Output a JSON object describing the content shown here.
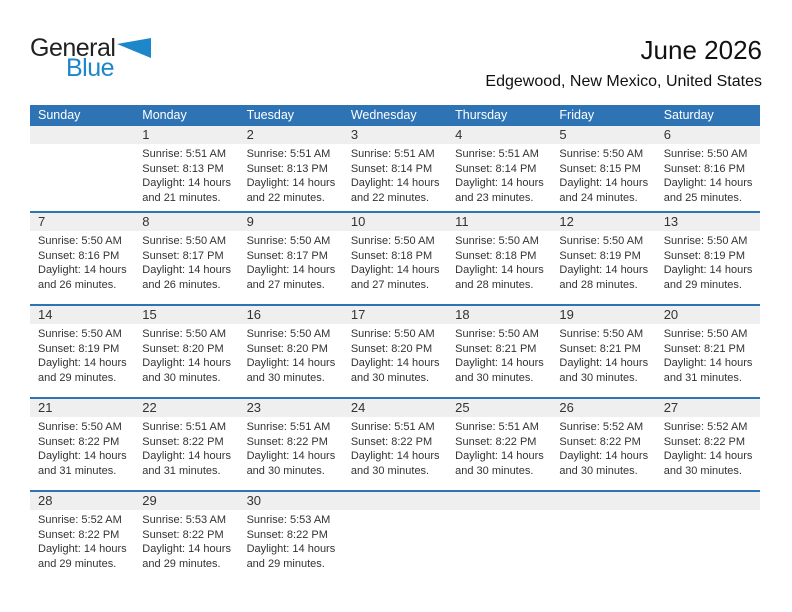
{
  "logo": {
    "part1": "General",
    "part2": "Blue"
  },
  "title": {
    "month_year": "June 2026",
    "location": "Edgewood, New Mexico, United States"
  },
  "colors": {
    "header_blue": "#2E74B5",
    "logo_blue": "#1E87C9",
    "band_gray": "#EFEFEF"
  },
  "calendar": {
    "weekday_headers": [
      "Sunday",
      "Monday",
      "Tuesday",
      "Wednesday",
      "Thursday",
      "Friday",
      "Saturday"
    ],
    "weeks": [
      [
        null,
        {
          "day": "1",
          "sunrise": "Sunrise: 5:51 AM",
          "sunset": "Sunset: 8:13 PM",
          "daylight_line1": "Daylight: 14 hours",
          "daylight_line2": "and 21 minutes."
        },
        {
          "day": "2",
          "sunrise": "Sunrise: 5:51 AM",
          "sunset": "Sunset: 8:13 PM",
          "daylight_line1": "Daylight: 14 hours",
          "daylight_line2": "and 22 minutes."
        },
        {
          "day": "3",
          "sunrise": "Sunrise: 5:51 AM",
          "sunset": "Sunset: 8:14 PM",
          "daylight_line1": "Daylight: 14 hours",
          "daylight_line2": "and 22 minutes."
        },
        {
          "day": "4",
          "sunrise": "Sunrise: 5:51 AM",
          "sunset": "Sunset: 8:14 PM",
          "daylight_line1": "Daylight: 14 hours",
          "daylight_line2": "and 23 minutes."
        },
        {
          "day": "5",
          "sunrise": "Sunrise: 5:50 AM",
          "sunset": "Sunset: 8:15 PM",
          "daylight_line1": "Daylight: 14 hours",
          "daylight_line2": "and 24 minutes."
        },
        {
          "day": "6",
          "sunrise": "Sunrise: 5:50 AM",
          "sunset": "Sunset: 8:16 PM",
          "daylight_line1": "Daylight: 14 hours",
          "daylight_line2": "and 25 minutes."
        }
      ],
      [
        {
          "day": "7",
          "sunrise": "Sunrise: 5:50 AM",
          "sunset": "Sunset: 8:16 PM",
          "daylight_line1": "Daylight: 14 hours",
          "daylight_line2": "and 26 minutes."
        },
        {
          "day": "8",
          "sunrise": "Sunrise: 5:50 AM",
          "sunset": "Sunset: 8:17 PM",
          "daylight_line1": "Daylight: 14 hours",
          "daylight_line2": "and 26 minutes."
        },
        {
          "day": "9",
          "sunrise": "Sunrise: 5:50 AM",
          "sunset": "Sunset: 8:17 PM",
          "daylight_line1": "Daylight: 14 hours",
          "daylight_line2": "and 27 minutes."
        },
        {
          "day": "10",
          "sunrise": "Sunrise: 5:50 AM",
          "sunset": "Sunset: 8:18 PM",
          "daylight_line1": "Daylight: 14 hours",
          "daylight_line2": "and 27 minutes."
        },
        {
          "day": "11",
          "sunrise": "Sunrise: 5:50 AM",
          "sunset": "Sunset: 8:18 PM",
          "daylight_line1": "Daylight: 14 hours",
          "daylight_line2": "and 28 minutes."
        },
        {
          "day": "12",
          "sunrise": "Sunrise: 5:50 AM",
          "sunset": "Sunset: 8:19 PM",
          "daylight_line1": "Daylight: 14 hours",
          "daylight_line2": "and 28 minutes."
        },
        {
          "day": "13",
          "sunrise": "Sunrise: 5:50 AM",
          "sunset": "Sunset: 8:19 PM",
          "daylight_line1": "Daylight: 14 hours",
          "daylight_line2": "and 29 minutes."
        }
      ],
      [
        {
          "day": "14",
          "sunrise": "Sunrise: 5:50 AM",
          "sunset": "Sunset: 8:19 PM",
          "daylight_line1": "Daylight: 14 hours",
          "daylight_line2": "and 29 minutes."
        },
        {
          "day": "15",
          "sunrise": "Sunrise: 5:50 AM",
          "sunset": "Sunset: 8:20 PM",
          "daylight_line1": "Daylight: 14 hours",
          "daylight_line2": "and 30 minutes."
        },
        {
          "day": "16",
          "sunrise": "Sunrise: 5:50 AM",
          "sunset": "Sunset: 8:20 PM",
          "daylight_line1": "Daylight: 14 hours",
          "daylight_line2": "and 30 minutes."
        },
        {
          "day": "17",
          "sunrise": "Sunrise: 5:50 AM",
          "sunset": "Sunset: 8:20 PM",
          "daylight_line1": "Daylight: 14 hours",
          "daylight_line2": "and 30 minutes."
        },
        {
          "day": "18",
          "sunrise": "Sunrise: 5:50 AM",
          "sunset": "Sunset: 8:21 PM",
          "daylight_line1": "Daylight: 14 hours",
          "daylight_line2": "and 30 minutes."
        },
        {
          "day": "19",
          "sunrise": "Sunrise: 5:50 AM",
          "sunset": "Sunset: 8:21 PM",
          "daylight_line1": "Daylight: 14 hours",
          "daylight_line2": "and 30 minutes."
        },
        {
          "day": "20",
          "sunrise": "Sunrise: 5:50 AM",
          "sunset": "Sunset: 8:21 PM",
          "daylight_line1": "Daylight: 14 hours",
          "daylight_line2": "and 31 minutes."
        }
      ],
      [
        {
          "day": "21",
          "sunrise": "Sunrise: 5:50 AM",
          "sunset": "Sunset: 8:22 PM",
          "daylight_line1": "Daylight: 14 hours",
          "daylight_line2": "and 31 minutes."
        },
        {
          "day": "22",
          "sunrise": "Sunrise: 5:51 AM",
          "sunset": "Sunset: 8:22 PM",
          "daylight_line1": "Daylight: 14 hours",
          "daylight_line2": "and 31 minutes."
        },
        {
          "day": "23",
          "sunrise": "Sunrise: 5:51 AM",
          "sunset": "Sunset: 8:22 PM",
          "daylight_line1": "Daylight: 14 hours",
          "daylight_line2": "and 30 minutes."
        },
        {
          "day": "24",
          "sunrise": "Sunrise: 5:51 AM",
          "sunset": "Sunset: 8:22 PM",
          "daylight_line1": "Daylight: 14 hours",
          "daylight_line2": "and 30 minutes."
        },
        {
          "day": "25",
          "sunrise": "Sunrise: 5:51 AM",
          "sunset": "Sunset: 8:22 PM",
          "daylight_line1": "Daylight: 14 hours",
          "daylight_line2": "and 30 minutes."
        },
        {
          "day": "26",
          "sunrise": "Sunrise: 5:52 AM",
          "sunset": "Sunset: 8:22 PM",
          "daylight_line1": "Daylight: 14 hours",
          "daylight_line2": "and 30 minutes."
        },
        {
          "day": "27",
          "sunrise": "Sunrise: 5:52 AM",
          "sunset": "Sunset: 8:22 PM",
          "daylight_line1": "Daylight: 14 hours",
          "daylight_line2": "and 30 minutes."
        }
      ],
      [
        {
          "day": "28",
          "sunrise": "Sunrise: 5:52 AM",
          "sunset": "Sunset: 8:22 PM",
          "daylight_line1": "Daylight: 14 hours",
          "daylight_line2": "and 29 minutes."
        },
        {
          "day": "29",
          "sunrise": "Sunrise: 5:53 AM",
          "sunset": "Sunset: 8:22 PM",
          "daylight_line1": "Daylight: 14 hours",
          "daylight_line2": "and 29 minutes."
        },
        {
          "day": "30",
          "sunrise": "Sunrise: 5:53 AM",
          "sunset": "Sunset: 8:22 PM",
          "daylight_line1": "Daylight: 14 hours",
          "daylight_line2": "and 29 minutes."
        },
        null,
        null,
        null,
        null
      ]
    ]
  }
}
